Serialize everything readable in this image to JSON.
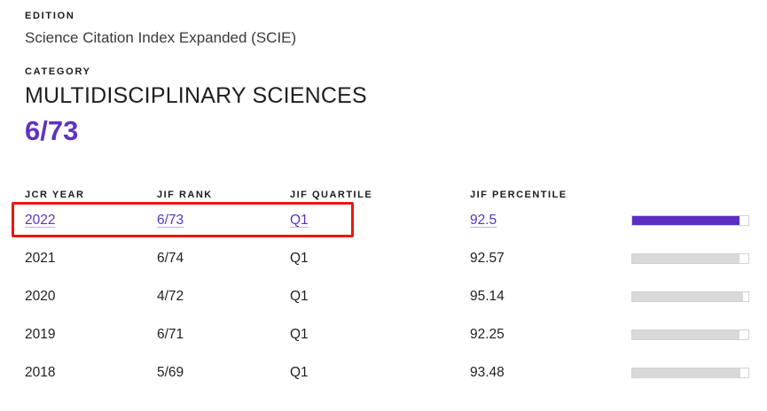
{
  "colors": {
    "accent_purple": "#5e33bf",
    "bar_purple": "#5b2ec4",
    "bar_gray": "#d9d9d9",
    "annotation_red": "#e8190d"
  },
  "edition": {
    "label": "EDITION",
    "value": "Science Citation Index Expanded (SCIE)"
  },
  "category": {
    "label": "CATEGORY",
    "value": "MULTIDISCIPLINARY SCIENCES",
    "rank": "6/73"
  },
  "table": {
    "columns": [
      {
        "key": "year",
        "label": "JCR YEAR"
      },
      {
        "key": "rank",
        "label": "JIF RANK"
      },
      {
        "key": "quartile",
        "label": "JIF QUARTILE"
      },
      {
        "key": "percentile",
        "label": "JIF PERCENTILE"
      }
    ],
    "rows": [
      {
        "year": "2022",
        "rank": "6/73",
        "quartile": "Q1",
        "percentile": "92.5",
        "percentile_value": 92.5,
        "highlighted": true
      },
      {
        "year": "2021",
        "rank": "6/74",
        "quartile": "Q1",
        "percentile": "92.57",
        "percentile_value": 92.57,
        "highlighted": false
      },
      {
        "year": "2020",
        "rank": "4/72",
        "quartile": "Q1",
        "percentile": "95.14",
        "percentile_value": 95.14,
        "highlighted": false
      },
      {
        "year": "2019",
        "rank": "6/71",
        "quartile": "Q1",
        "percentile": "92.25",
        "percentile_value": 92.25,
        "highlighted": false
      },
      {
        "year": "2018",
        "rank": "5/69",
        "quartile": "Q1",
        "percentile": "93.48",
        "percentile_value": 93.48,
        "highlighted": false
      }
    ]
  }
}
